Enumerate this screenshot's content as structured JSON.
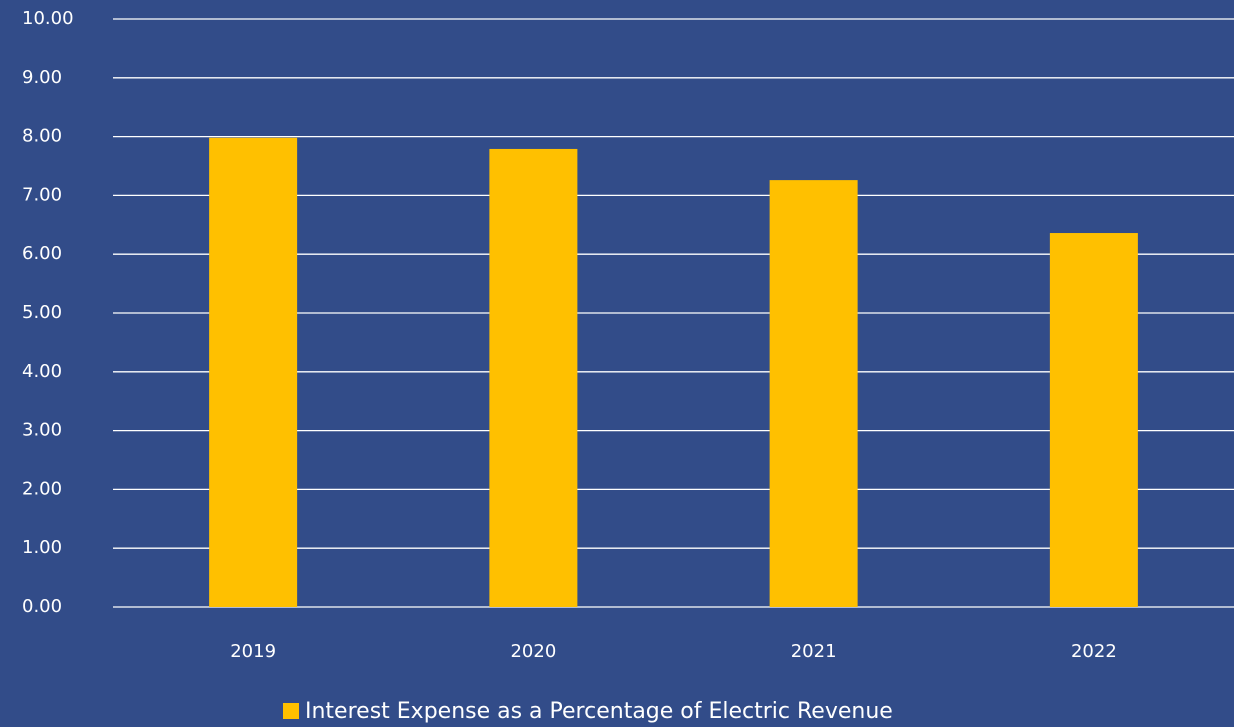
{
  "chart_data": {
    "type": "bar",
    "categories": [
      "2019",
      "2020",
      "2021",
      "2022"
    ],
    "series": [
      {
        "name": "Interest Expense as a Percentage of Electric Revenue",
        "color": "#ffc000",
        "values": [
          7.98,
          7.79,
          7.26,
          6.36
        ]
      }
    ],
    "ylim": [
      0,
      10
    ],
    "yticks": [
      {
        "value": 0,
        "label": "0.00"
      },
      {
        "value": 1,
        "label": "1.00"
      },
      {
        "value": 2,
        "label": "2.00"
      },
      {
        "value": 3,
        "label": "3.00"
      },
      {
        "value": 4,
        "label": "4.00"
      },
      {
        "value": 5,
        "label": "5.00"
      },
      {
        "value": 6,
        "label": "6.00"
      },
      {
        "value": 7,
        "label": "7.00"
      },
      {
        "value": 8,
        "label": "8.00"
      },
      {
        "value": 9,
        "label": "9.00"
      },
      {
        "value": 10,
        "label": "10.00"
      }
    ],
    "grid": true,
    "legend": "bottom",
    "background": "#324c89"
  }
}
